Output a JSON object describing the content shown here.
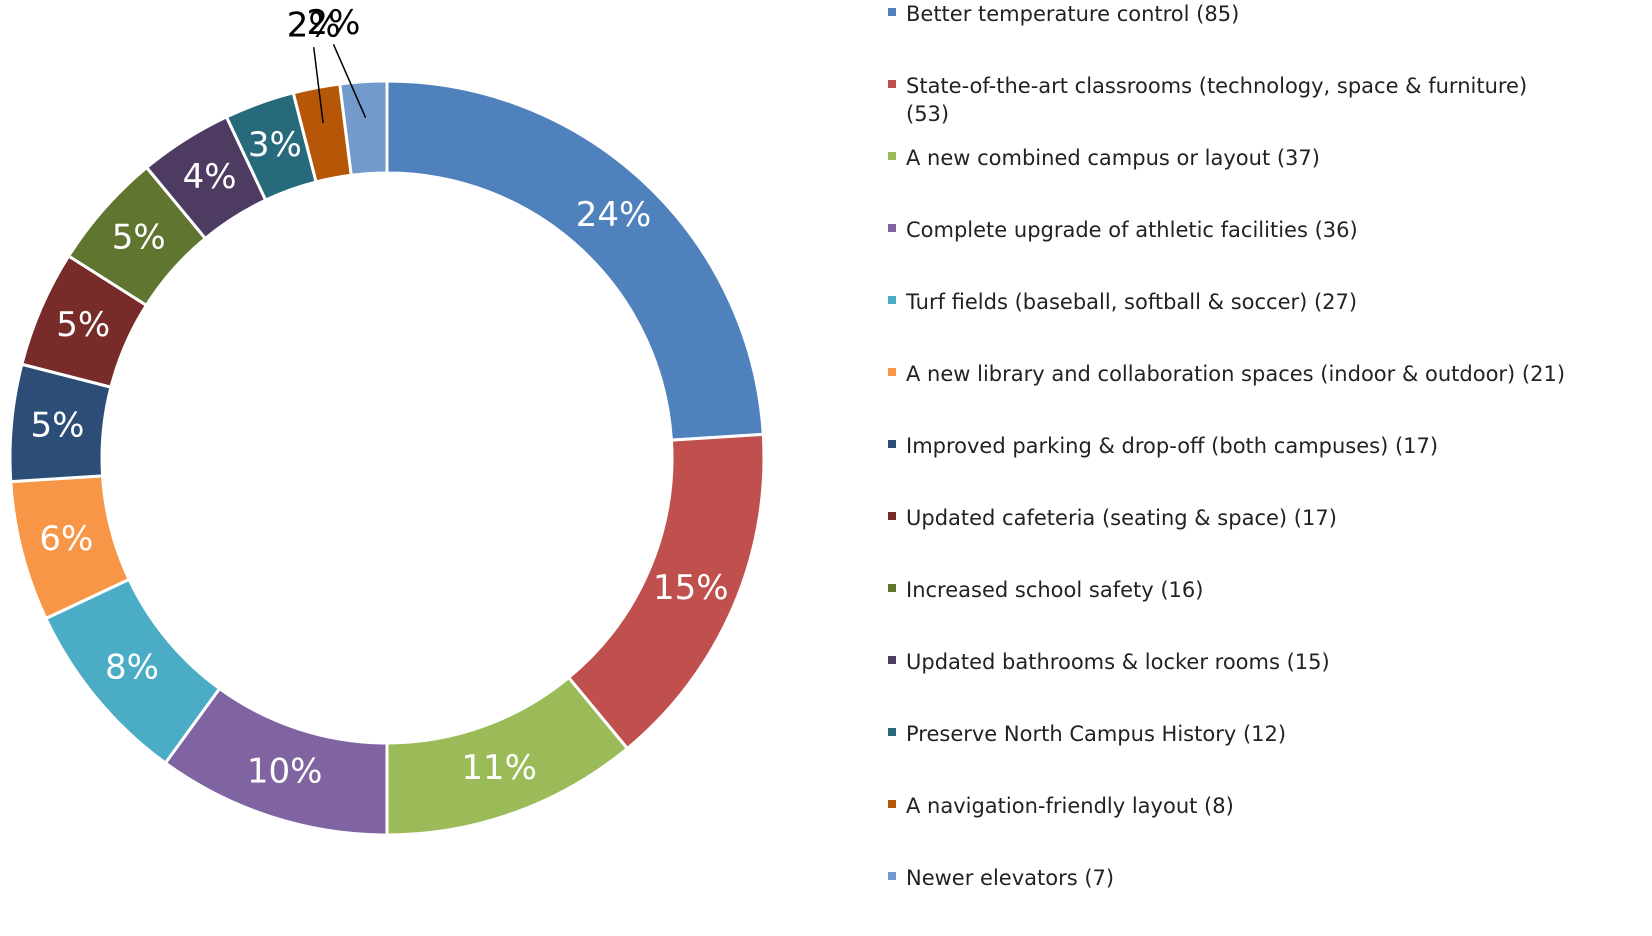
{
  "chart_data": {
    "type": "donut",
    "categories": [
      "Better temperature control (85)",
      "State-of-the-art classrooms (technology, space & furniture) (53)",
      "A new combined campus or layout (37)",
      "Complete upgrade of athletic facilities (36)",
      "Turf fields (baseball, softball & soccer) (27)",
      "A new library and collaboration spaces (indoor & outdoor) (21)",
      "Improved parking & drop-off (both campuses) (17)",
      "Updated cafeteria (seating & space) (17)",
      "Increased school safety (16)",
      "Updated bathrooms & locker rooms (15)",
      "Preserve North Campus History (12)",
      "A navigation-friendly layout (8)",
      "Newer elevators (7)"
    ],
    "values": [
      24,
      15,
      11,
      10,
      8,
      6,
      5,
      5,
      5,
      4,
      3,
      2,
      2
    ],
    "value_labels": [
      "24%",
      "15%",
      "11%",
      "10%",
      "8%",
      "6%",
      "5%",
      "5%",
      "5%",
      "4%",
      "3%",
      "2%",
      "2%"
    ],
    "colors": [
      "#4f81bd",
      "#c0504d",
      "#9bbb59",
      "#8064a2",
      "#4bacc6",
      "#f79646",
      "#2c4d75",
      "#772c2a",
      "#5f7530",
      "#4d3b62",
      "#276a7c",
      "#b65708",
      "#729aca"
    ],
    "legend": "right"
  }
}
